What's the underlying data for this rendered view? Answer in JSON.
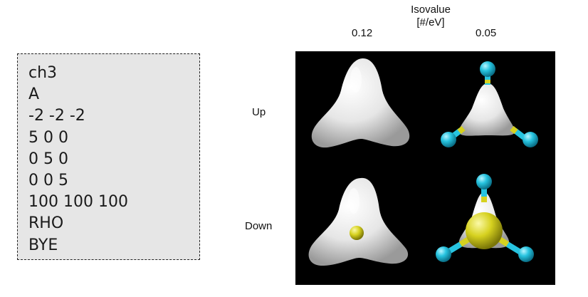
{
  "input_file": {
    "lines": [
      "ch3",
      "A",
      "-2 -2 -2",
      "5 0 0",
      "0 5 0",
      "0 0 5",
      "100 100 100",
      "RHO",
      "BYE"
    ]
  },
  "isovalue_header": {
    "title": "Isovalue",
    "unit": "[#/eV]",
    "columns": [
      "0.12",
      "0.05"
    ]
  },
  "spin_rows": [
    "Up",
    "Down"
  ],
  "colors": {
    "background": "#000000",
    "isosurface": "#e8e8e8",
    "hydrogen": "#27c4e0",
    "carbon": "#d6d11f"
  },
  "icons": {
    "hydrogen_atom": "cyan-sphere",
    "carbon_atom": "yellow-sphere"
  }
}
